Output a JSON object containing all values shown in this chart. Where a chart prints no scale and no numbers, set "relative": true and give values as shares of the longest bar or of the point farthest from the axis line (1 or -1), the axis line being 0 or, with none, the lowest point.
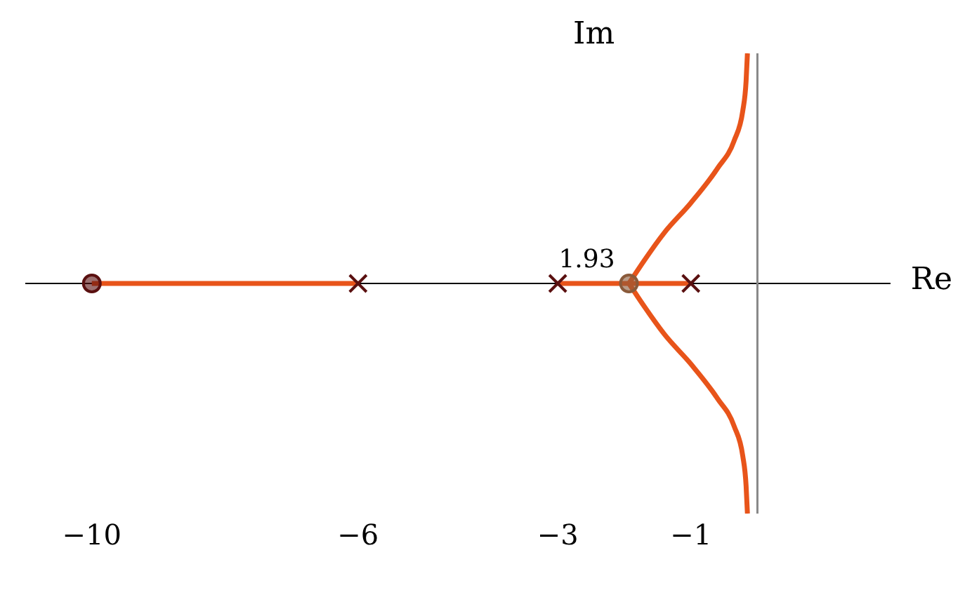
{
  "chart_data": {
    "type": "line",
    "relative": true,
    "xlabel": "Re",
    "ylabel": "Im",
    "xlim": [
      -11,
      2
    ],
    "xticks": [
      {
        "value": -10,
        "label": "−10"
      },
      {
        "value": -6,
        "label": "−6"
      },
      {
        "value": -3,
        "label": "−3"
      },
      {
        "value": -1,
        "label": "−1"
      }
    ],
    "series": [
      {
        "color": "#e8541a",
        "x": [
          -6,
          -10
        ],
        "values": [
          0,
          0
        ]
      },
      {
        "color": "#e8541a",
        "x": [
          -3,
          -1.93
        ],
        "values": [
          0,
          0
        ]
      },
      {
        "color": "#e8541a",
        "x": [
          -1,
          -1.93
        ],
        "values": [
          0,
          0
        ]
      },
      {
        "color": "#e8541a",
        "x": [
          -1.93,
          -1.7,
          -1.4,
          -1.0,
          -0.6,
          -0.35,
          -0.22,
          -0.17,
          -0.15
        ],
        "values": [
          0,
          0.1,
          0.22,
          0.35,
          0.5,
          0.62,
          0.75,
          0.88,
          1
        ]
      },
      {
        "color": "#e8541a",
        "x": [
          -1.93,
          -1.7,
          -1.4,
          -1.0,
          -0.6,
          -0.35,
          -0.22,
          -0.17,
          -0.15
        ],
        "values": [
          0,
          -0.1,
          -0.22,
          -0.35,
          -0.5,
          -0.62,
          -0.75,
          -0.88,
          -1
        ]
      },
      {
        "type": "scatter",
        "color": "#5a1010",
        "marker": "cross",
        "x": [
          -6,
          -3,
          -1
        ],
        "values": [
          0,
          0,
          0
        ]
      },
      {
        "type": "scatter",
        "color": "#5a1010",
        "marker": "circle",
        "x": [
          -10
        ],
        "values": [
          0
        ]
      },
      {
        "type": "scatter",
        "color": "#8a5a3a",
        "marker": "circle",
        "x": [
          -1.93
        ],
        "values": [
          0
        ]
      }
    ],
    "ref_lines": [
      {
        "axis": "y",
        "value": 0,
        "color": "#000000"
      },
      {
        "axis": "x",
        "value": 0,
        "color": "#888888"
      }
    ],
    "annotations": [
      {
        "text": "1.93",
        "x": -1.93,
        "y": 0
      }
    ]
  }
}
